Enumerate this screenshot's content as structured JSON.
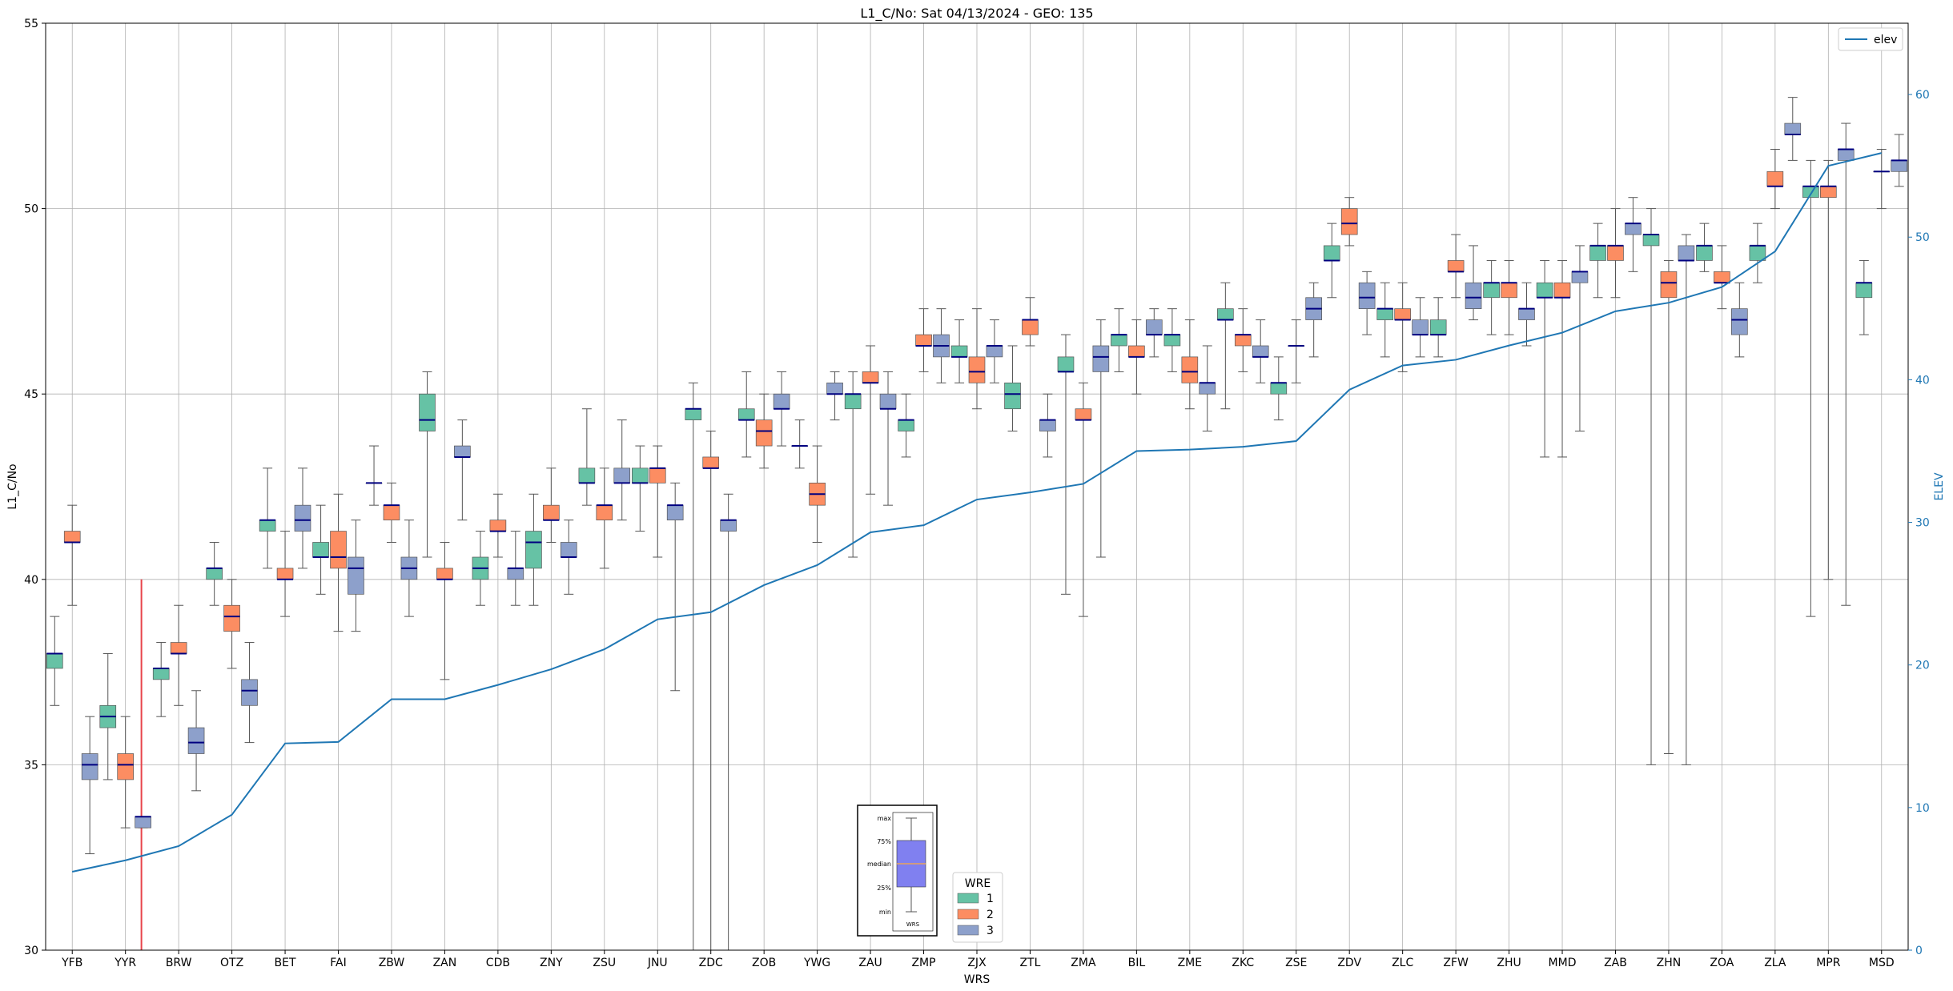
{
  "colors": {
    "wre1": "#66c2a5",
    "wre2": "#fc8d62",
    "wre3": "#8da0cb",
    "median": "#000080",
    "elev": "#1f77b4",
    "whisker": "#555555",
    "grid": "#b0b0b0",
    "marker": "#e8434a",
    "legend_box": "#8080f0",
    "legend_median": "#e9a35c"
  },
  "chart_data": {
    "type": "box",
    "title": "L1_C/No: Sat 04/13/2024 - GEO: 135",
    "xlabel": "WRS",
    "ylabel": "L1_C/No",
    "ylabel_right": "ELEV",
    "ylim": [
      30,
      55
    ],
    "ylim_right": [
      0,
      65
    ],
    "yticks": [
      "30",
      "35",
      "40",
      "45",
      "50",
      "55"
    ],
    "yticks_right": [
      "0",
      "10",
      "20",
      "30",
      "40",
      "50",
      "60"
    ],
    "grid": true,
    "categories": [
      "YFB",
      "YYR",
      "BRW",
      "OTZ",
      "BET",
      "FAI",
      "ZBW",
      "ZAN",
      "CDB",
      "ZNY",
      "ZSU",
      "JNU",
      "ZDC",
      "ZOB",
      "YWG",
      "ZAU",
      "ZMP",
      "ZJX",
      "ZTL",
      "ZMA",
      "BIL",
      "ZME",
      "ZKC",
      "ZSE",
      "ZDV",
      "ZLC",
      "ZFW",
      "ZHU",
      "MMD",
      "ZAB",
      "ZHN",
      "ZOA",
      "ZLA",
      "MPR",
      "MSD"
    ],
    "elev_legend": "elev",
    "elev": [
      5.5,
      6.3,
      7.3,
      9.5,
      14.5,
      14.6,
      17.6,
      17.6,
      18.6,
      19.7,
      21.1,
      23.2,
      23.7,
      25.6,
      27.0,
      29.3,
      29.8,
      31.6,
      32.1,
      32.7,
      35.0,
      35.1,
      35.3,
      35.7,
      39.3,
      41.0,
      41.4,
      42.4,
      43.3,
      44.8,
      45.4,
      46.5,
      49.0,
      55.0,
      55.9
    ],
    "wre_legend_title": "WRE",
    "wre_legend": [
      "1",
      "2",
      "3"
    ],
    "boxes": [
      {
        "cat": "YFB",
        "wre": 1,
        "min": 36.6,
        "q1": 37.6,
        "med": 38.0,
        "q3": 38.0,
        "max": 39.0
      },
      {
        "cat": "YFB",
        "wre": 2,
        "min": 39.3,
        "q1": 41.0,
        "med": 41.0,
        "q3": 41.3,
        "max": 42.0
      },
      {
        "cat": "YFB",
        "wre": 3,
        "min": 32.6,
        "q1": 34.6,
        "med": 35.0,
        "q3": 35.3,
        "max": 36.3
      },
      {
        "cat": "YYR",
        "wre": 1,
        "min": 34.6,
        "q1": 36.0,
        "med": 36.3,
        "q3": 36.6,
        "max": 38.0
      },
      {
        "cat": "YYR",
        "wre": 2,
        "min": 33.3,
        "q1": 34.6,
        "med": 35.0,
        "q3": 35.3,
        "max": 36.3
      },
      {
        "cat": "YYR",
        "wre": 3,
        "min": 33.3,
        "q1": 33.3,
        "med": 33.6,
        "q3": 33.6,
        "max": 33.6
      },
      {
        "cat": "BRW",
        "wre": 1,
        "min": 36.3,
        "q1": 37.3,
        "med": 37.6,
        "q3": 37.6,
        "max": 38.3
      },
      {
        "cat": "BRW",
        "wre": 2,
        "min": 36.6,
        "q1": 38.0,
        "med": 38.0,
        "q3": 38.3,
        "max": 39.3
      },
      {
        "cat": "BRW",
        "wre": 3,
        "min": 34.3,
        "q1": 35.3,
        "med": 35.6,
        "q3": 36.0,
        "max": 37.0
      },
      {
        "cat": "OTZ",
        "wre": 1,
        "min": 39.3,
        "q1": 40.0,
        "med": 40.3,
        "q3": 40.3,
        "max": 41.0
      },
      {
        "cat": "OTZ",
        "wre": 2,
        "min": 37.6,
        "q1": 38.6,
        "med": 39.0,
        "q3": 39.3,
        "max": 40.0
      },
      {
        "cat": "OTZ",
        "wre": 3,
        "min": 35.6,
        "q1": 36.6,
        "med": 37.0,
        "q3": 37.3,
        "max": 38.3
      },
      {
        "cat": "BET",
        "wre": 1,
        "min": 40.3,
        "q1": 41.3,
        "med": 41.6,
        "q3": 41.6,
        "max": 43.0
      },
      {
        "cat": "BET",
        "wre": 2,
        "min": 39.0,
        "q1": 40.0,
        "med": 40.0,
        "q3": 40.3,
        "max": 41.3
      },
      {
        "cat": "BET",
        "wre": 3,
        "min": 40.3,
        "q1": 41.3,
        "med": 41.6,
        "q3": 42.0,
        "max": 43.0
      },
      {
        "cat": "FAI",
        "wre": 1,
        "min": 39.6,
        "q1": 40.6,
        "med": 40.6,
        "q3": 41.0,
        "max": 42.0
      },
      {
        "cat": "FAI",
        "wre": 2,
        "min": 38.6,
        "q1": 40.3,
        "med": 40.6,
        "q3": 41.3,
        "max": 42.3
      },
      {
        "cat": "FAI",
        "wre": 3,
        "min": 38.6,
        "q1": 39.6,
        "med": 40.3,
        "q3": 40.6,
        "max": 41.6
      },
      {
        "cat": "ZBW",
        "wre": 1,
        "min": 42.0,
        "q1": 42.6,
        "med": 42.6,
        "q3": 42.6,
        "max": 43.6
      },
      {
        "cat": "ZBW",
        "wre": 2,
        "min": 41.0,
        "q1": 41.6,
        "med": 42.0,
        "q3": 42.0,
        "max": 42.6
      },
      {
        "cat": "ZBW",
        "wre": 3,
        "min": 39.0,
        "q1": 40.0,
        "med": 40.3,
        "q3": 40.6,
        "max": 41.6
      },
      {
        "cat": "ZAN",
        "wre": 1,
        "min": 40.6,
        "q1": 44.0,
        "med": 44.3,
        "q3": 45.0,
        "max": 45.6
      },
      {
        "cat": "ZAN",
        "wre": 2,
        "min": 37.3,
        "q1": 40.0,
        "med": 40.0,
        "q3": 40.3,
        "max": 41.0
      },
      {
        "cat": "ZAN",
        "wre": 3,
        "min": 41.6,
        "q1": 43.3,
        "med": 43.3,
        "q3": 43.6,
        "max": 44.3
      },
      {
        "cat": "CDB",
        "wre": 1,
        "min": 39.3,
        "q1": 40.0,
        "med": 40.3,
        "q3": 40.6,
        "max": 41.3
      },
      {
        "cat": "CDB",
        "wre": 2,
        "min": 40.6,
        "q1": 41.3,
        "med": 41.3,
        "q3": 41.6,
        "max": 42.3
      },
      {
        "cat": "CDB",
        "wre": 3,
        "min": 39.3,
        "q1": 40.0,
        "med": 40.3,
        "q3": 40.3,
        "max": 41.3
      },
      {
        "cat": "ZNY",
        "wre": 1,
        "min": 39.3,
        "q1": 40.3,
        "med": 41.0,
        "q3": 41.3,
        "max": 42.3
      },
      {
        "cat": "ZNY",
        "wre": 2,
        "min": 41.0,
        "q1": 41.6,
        "med": 41.6,
        "q3": 42.0,
        "max": 43.0
      },
      {
        "cat": "ZNY",
        "wre": 3,
        "min": 39.6,
        "q1": 40.6,
        "med": 40.6,
        "q3": 41.0,
        "max": 41.6
      },
      {
        "cat": "ZSU",
        "wre": 1,
        "min": 42.0,
        "q1": 42.6,
        "med": 42.6,
        "q3": 43.0,
        "max": 44.6
      },
      {
        "cat": "ZSU",
        "wre": 2,
        "min": 40.3,
        "q1": 41.6,
        "med": 42.0,
        "q3": 42.0,
        "max": 43.0
      },
      {
        "cat": "ZSU",
        "wre": 3,
        "min": 41.6,
        "q1": 42.6,
        "med": 42.6,
        "q3": 43.0,
        "max": 44.3
      },
      {
        "cat": "JNU",
        "wre": 1,
        "min": 41.3,
        "q1": 42.6,
        "med": 42.6,
        "q3": 43.0,
        "max": 43.6
      },
      {
        "cat": "JNU",
        "wre": 2,
        "min": 40.6,
        "q1": 42.6,
        "med": 43.0,
        "q3": 43.0,
        "max": 43.6
      },
      {
        "cat": "JNU",
        "wre": 3,
        "min": 37.0,
        "q1": 41.6,
        "med": 42.0,
        "q3": 42.0,
        "max": 42.6
      },
      {
        "cat": "ZDC",
        "wre": 1,
        "min": 30.0,
        "q1": 44.3,
        "med": 44.6,
        "q3": 44.6,
        "max": 45.3
      },
      {
        "cat": "ZDC",
        "wre": 2,
        "min": 30.0,
        "q1": 43.0,
        "med": 43.0,
        "q3": 43.3,
        "max": 44.0
      },
      {
        "cat": "ZDC",
        "wre": 3,
        "min": 30.0,
        "q1": 41.3,
        "med": 41.6,
        "q3": 41.6,
        "max": 42.3
      },
      {
        "cat": "ZOB",
        "wre": 1,
        "min": 43.3,
        "q1": 44.3,
        "med": 44.3,
        "q3": 44.6,
        "max": 45.6
      },
      {
        "cat": "ZOB",
        "wre": 2,
        "min": 43.0,
        "q1": 43.6,
        "med": 44.0,
        "q3": 44.3,
        "max": 45.0
      },
      {
        "cat": "ZOB",
        "wre": 3,
        "min": 43.6,
        "q1": 44.6,
        "med": 44.6,
        "q3": 45.0,
        "max": 45.6
      },
      {
        "cat": "YWG",
        "wre": 1,
        "min": 43.0,
        "q1": 43.6,
        "med": 43.6,
        "q3": 43.6,
        "max": 44.3
      },
      {
        "cat": "YWG",
        "wre": 2,
        "min": 41.0,
        "q1": 42.0,
        "med": 42.3,
        "q3": 42.6,
        "max": 43.6
      },
      {
        "cat": "YWG",
        "wre": 3,
        "min": 44.3,
        "q1": 45.0,
        "med": 45.0,
        "q3": 45.3,
        "max": 45.6
      },
      {
        "cat": "ZAU",
        "wre": 1,
        "min": 40.6,
        "q1": 44.6,
        "med": 45.0,
        "q3": 45.0,
        "max": 45.6
      },
      {
        "cat": "ZAU",
        "wre": 2,
        "min": 42.3,
        "q1": 45.3,
        "med": 45.3,
        "q3": 45.6,
        "max": 46.3
      },
      {
        "cat": "ZAU",
        "wre": 3,
        "min": 42.0,
        "q1": 44.6,
        "med": 44.6,
        "q3": 45.0,
        "max": 45.6
      },
      {
        "cat": "ZMP",
        "wre": 1,
        "min": 43.3,
        "q1": 44.0,
        "med": 44.3,
        "q3": 44.3,
        "max": 45.0
      },
      {
        "cat": "ZMP",
        "wre": 2,
        "min": 45.6,
        "q1": 46.3,
        "med": 46.3,
        "q3": 46.6,
        "max": 47.3
      },
      {
        "cat": "ZMP",
        "wre": 3,
        "min": 45.3,
        "q1": 46.0,
        "med": 46.3,
        "q3": 46.6,
        "max": 47.3
      },
      {
        "cat": "ZJX",
        "wre": 1,
        "min": 45.3,
        "q1": 46.0,
        "med": 46.0,
        "q3": 46.3,
        "max": 47.0
      },
      {
        "cat": "ZJX",
        "wre": 2,
        "min": 44.6,
        "q1": 45.3,
        "med": 45.6,
        "q3": 46.0,
        "max": 47.3
      },
      {
        "cat": "ZJX",
        "wre": 3,
        "min": 45.3,
        "q1": 46.0,
        "med": 46.3,
        "q3": 46.3,
        "max": 47.0
      },
      {
        "cat": "ZTL",
        "wre": 1,
        "min": 44.0,
        "q1": 44.6,
        "med": 45.0,
        "q3": 45.3,
        "max": 46.3
      },
      {
        "cat": "ZTL",
        "wre": 2,
        "min": 46.3,
        "q1": 46.6,
        "med": 47.0,
        "q3": 47.0,
        "max": 47.6
      },
      {
        "cat": "ZTL",
        "wre": 3,
        "min": 43.3,
        "q1": 44.0,
        "med": 44.3,
        "q3": 44.3,
        "max": 45.0
      },
      {
        "cat": "ZMA",
        "wre": 1,
        "min": 39.6,
        "q1": 45.6,
        "med": 45.6,
        "q3": 46.0,
        "max": 46.6
      },
      {
        "cat": "ZMA",
        "wre": 2,
        "min": 39.0,
        "q1": 44.3,
        "med": 44.3,
        "q3": 44.6,
        "max": 45.3
      },
      {
        "cat": "ZMA",
        "wre": 3,
        "min": 40.6,
        "q1": 45.6,
        "med": 46.0,
        "q3": 46.3,
        "max": 47.0
      },
      {
        "cat": "BIL",
        "wre": 1,
        "min": 45.6,
        "q1": 46.3,
        "med": 46.6,
        "q3": 46.6,
        "max": 47.3
      },
      {
        "cat": "BIL",
        "wre": 2,
        "min": 45.0,
        "q1": 46.0,
        "med": 46.0,
        "q3": 46.3,
        "max": 47.0
      },
      {
        "cat": "BIL",
        "wre": 3,
        "min": 46.0,
        "q1": 46.6,
        "med": 46.6,
        "q3": 47.0,
        "max": 47.3
      },
      {
        "cat": "ZME",
        "wre": 1,
        "min": 45.6,
        "q1": 46.3,
        "med": 46.6,
        "q3": 46.6,
        "max": 47.3
      },
      {
        "cat": "ZME",
        "wre": 2,
        "min": 44.6,
        "q1": 45.3,
        "med": 45.6,
        "q3": 46.0,
        "max": 47.0
      },
      {
        "cat": "ZME",
        "wre": 3,
        "min": 44.0,
        "q1": 45.0,
        "med": 45.3,
        "q3": 45.3,
        "max": 46.3
      },
      {
        "cat": "ZKC",
        "wre": 1,
        "min": 44.6,
        "q1": 47.0,
        "med": 47.0,
        "q3": 47.3,
        "max": 48.0
      },
      {
        "cat": "ZKC",
        "wre": 2,
        "min": 45.6,
        "q1": 46.3,
        "med": 46.6,
        "q3": 46.6,
        "max": 47.3
      },
      {
        "cat": "ZKC",
        "wre": 3,
        "min": 45.3,
        "q1": 46.0,
        "med": 46.0,
        "q3": 46.3,
        "max": 47.0
      },
      {
        "cat": "ZSE",
        "wre": 1,
        "min": 44.3,
        "q1": 45.0,
        "med": 45.3,
        "q3": 45.3,
        "max": 46.0
      },
      {
        "cat": "ZSE",
        "wre": 2,
        "min": 45.3,
        "q1": 46.3,
        "med": 46.3,
        "q3": 46.3,
        "max": 47.0
      },
      {
        "cat": "ZSE",
        "wre": 3,
        "min": 46.0,
        "q1": 47.0,
        "med": 47.3,
        "q3": 47.6,
        "max": 48.0
      },
      {
        "cat": "ZDV",
        "wre": 1,
        "min": 47.6,
        "q1": 48.6,
        "med": 48.6,
        "q3": 49.0,
        "max": 49.6
      },
      {
        "cat": "ZDV",
        "wre": 2,
        "min": 49.0,
        "q1": 49.3,
        "med": 49.6,
        "q3": 50.0,
        "max": 50.3
      },
      {
        "cat": "ZDV",
        "wre": 3,
        "min": 46.6,
        "q1": 47.3,
        "med": 47.6,
        "q3": 48.0,
        "max": 48.3
      },
      {
        "cat": "ZLC",
        "wre": 1,
        "min": 46.0,
        "q1": 47.0,
        "med": 47.3,
        "q3": 47.3,
        "max": 48.0
      },
      {
        "cat": "ZLC",
        "wre": 2,
        "min": 45.6,
        "q1": 47.0,
        "med": 47.0,
        "q3": 47.3,
        "max": 48.0
      },
      {
        "cat": "ZLC",
        "wre": 3,
        "min": 46.0,
        "q1": 46.6,
        "med": 46.6,
        "q3": 47.0,
        "max": 47.6
      },
      {
        "cat": "ZFW",
        "wre": 1,
        "min": 46.0,
        "q1": 46.6,
        "med": 46.6,
        "q3": 47.0,
        "max": 47.6
      },
      {
        "cat": "ZFW",
        "wre": 2,
        "min": 47.6,
        "q1": 48.3,
        "med": 48.3,
        "q3": 48.6,
        "max": 49.3
      },
      {
        "cat": "ZFW",
        "wre": 3,
        "min": 47.0,
        "q1": 47.3,
        "med": 47.6,
        "q3": 48.0,
        "max": 49.0
      },
      {
        "cat": "ZHU",
        "wre": 1,
        "min": 46.6,
        "q1": 47.6,
        "med": 48.0,
        "q3": 48.0,
        "max": 48.6
      },
      {
        "cat": "ZHU",
        "wre": 2,
        "min": 46.6,
        "q1": 47.6,
        "med": 48.0,
        "q3": 48.0,
        "max": 48.6
      },
      {
        "cat": "ZHU",
        "wre": 3,
        "min": 46.3,
        "q1": 47.0,
        "med": 47.3,
        "q3": 47.3,
        "max": 48.0
      },
      {
        "cat": "MMD",
        "wre": 1,
        "min": 43.3,
        "q1": 47.6,
        "med": 47.6,
        "q3": 48.0,
        "max": 48.6
      },
      {
        "cat": "MMD",
        "wre": 2,
        "min": 43.3,
        "q1": 47.6,
        "med": 47.6,
        "q3": 48.0,
        "max": 48.6
      },
      {
        "cat": "MMD",
        "wre": 3,
        "min": 44.0,
        "q1": 48.0,
        "med": 48.3,
        "q3": 48.3,
        "max": 49.0
      },
      {
        "cat": "ZAB",
        "wre": 1,
        "min": 47.6,
        "q1": 48.6,
        "med": 49.0,
        "q3": 49.0,
        "max": 49.6
      },
      {
        "cat": "ZAB",
        "wre": 2,
        "min": 47.6,
        "q1": 48.6,
        "med": 49.0,
        "q3": 49.0,
        "max": 50.0
      },
      {
        "cat": "ZAB",
        "wre": 3,
        "min": 48.3,
        "q1": 49.3,
        "med": 49.6,
        "q3": 49.6,
        "max": 50.3
      },
      {
        "cat": "ZHN",
        "wre": 1,
        "min": 35.0,
        "q1": 49.0,
        "med": 49.3,
        "q3": 49.3,
        "max": 50.0
      },
      {
        "cat": "ZHN",
        "wre": 2,
        "min": 35.3,
        "q1": 47.6,
        "med": 48.0,
        "q3": 48.3,
        "max": 48.6
      },
      {
        "cat": "ZHN",
        "wre": 3,
        "min": 35.0,
        "q1": 48.6,
        "med": 48.6,
        "q3": 49.0,
        "max": 49.3
      },
      {
        "cat": "ZOA",
        "wre": 1,
        "min": 48.3,
        "q1": 48.6,
        "med": 49.0,
        "q3": 49.0,
        "max": 49.6
      },
      {
        "cat": "ZOA",
        "wre": 2,
        "min": 47.3,
        "q1": 48.0,
        "med": 48.0,
        "q3": 48.3,
        "max": 49.0
      },
      {
        "cat": "ZOA",
        "wre": 3,
        "min": 46.0,
        "q1": 46.6,
        "med": 47.0,
        "q3": 47.3,
        "max": 48.0
      },
      {
        "cat": "ZLA",
        "wre": 1,
        "min": 48.0,
        "q1": 48.6,
        "med": 49.0,
        "q3": 49.0,
        "max": 49.6
      },
      {
        "cat": "ZLA",
        "wre": 2,
        "min": 50.0,
        "q1": 50.6,
        "med": 50.6,
        "q3": 51.0,
        "max": 51.6
      },
      {
        "cat": "ZLA",
        "wre": 3,
        "min": 51.3,
        "q1": 52.0,
        "med": 52.0,
        "q3": 52.3,
        "max": 53.0
      },
      {
        "cat": "MPR",
        "wre": 1,
        "min": 39.0,
        "q1": 50.3,
        "med": 50.6,
        "q3": 50.6,
        "max": 51.3
      },
      {
        "cat": "MPR",
        "wre": 2,
        "min": 40.0,
        "q1": 50.3,
        "med": 50.6,
        "q3": 50.6,
        "max": 51.3
      },
      {
        "cat": "MPR",
        "wre": 3,
        "min": 39.3,
        "q1": 51.3,
        "med": 51.6,
        "q3": 51.6,
        "max": 52.3
      },
      {
        "cat": "MSD",
        "wre": 1,
        "min": 46.6,
        "q1": 47.6,
        "med": 48.0,
        "q3": 48.0,
        "max": 48.6
      },
      {
        "cat": "MSD",
        "wre": 2,
        "min": 50.0,
        "q1": 51.0,
        "med": 51.0,
        "q3": 51.0,
        "max": 51.6
      },
      {
        "cat": "MSD",
        "wre": 3,
        "min": 50.6,
        "q1": 51.0,
        "med": 51.3,
        "q3": 51.3,
        "max": 52.0
      }
    ],
    "vertical_marker": {
      "cat_index": 1.3,
      "from": 30,
      "to": 40
    },
    "box_explainer": {
      "labels": [
        "max",
        "75%",
        "median",
        "25%",
        "min"
      ],
      "xlabel": "WRS"
    }
  }
}
